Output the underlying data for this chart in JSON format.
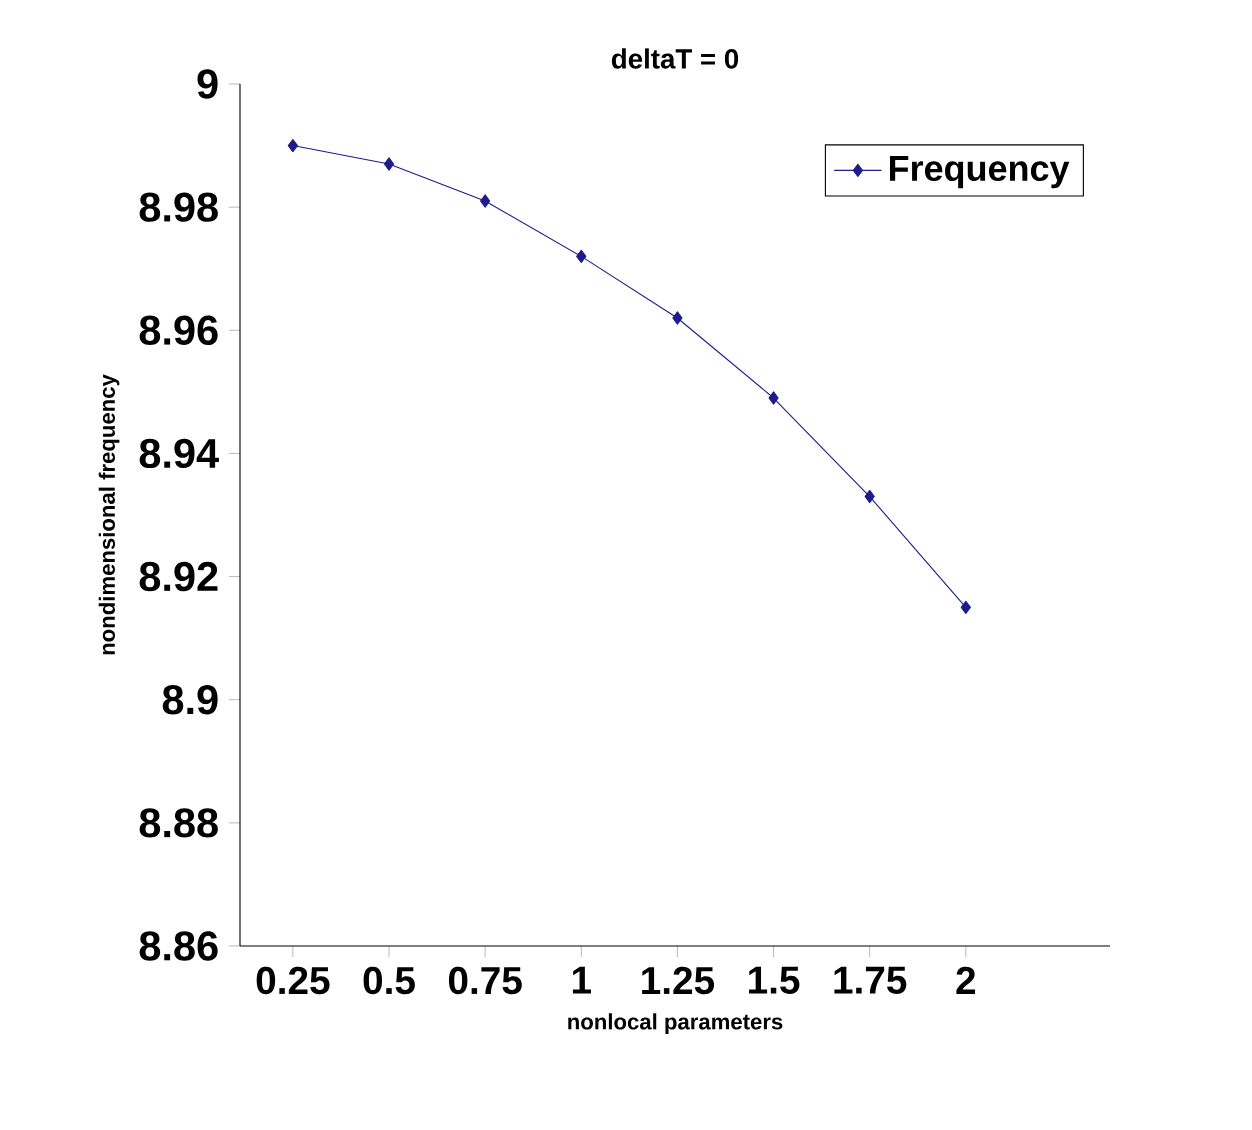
{
  "chart_data": {
    "type": "line",
    "title": "deltaT = 0",
    "xlabel": "nonlocal parameters",
    "ylabel": "nondimensional frequency",
    "categories": [
      "0.25",
      "0.5",
      "0.75",
      "1",
      "1.25",
      "1.5",
      "1.75",
      "2"
    ],
    "series": [
      {
        "name": "Frequency",
        "color": "#1c1c8a",
        "values": [
          8.99,
          8.987,
          8.981,
          8.972,
          8.962,
          8.949,
          8.933,
          8.915
        ]
      }
    ],
    "ylim": [
      8.86,
      9
    ],
    "yticks": [
      {
        "value": 8.86,
        "label": "8.86"
      },
      {
        "value": 8.88,
        "label": "8.88"
      },
      {
        "value": 8.9,
        "label": "8.9"
      },
      {
        "value": 8.92,
        "label": "8.92"
      },
      {
        "value": 8.94,
        "label": "8.94"
      },
      {
        "value": 8.96,
        "label": "8.96"
      },
      {
        "value": 8.98,
        "label": "8.98"
      },
      {
        "value": 9,
        "label": "9"
      }
    ],
    "grid": false,
    "legend": "top right",
    "marker": "diamond",
    "line_style": "solid"
  }
}
